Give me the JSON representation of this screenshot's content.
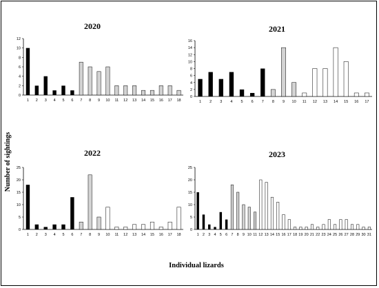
{
  "figure": {
    "ylabel": "Number of sightings",
    "xlabel": "Individual lizards"
  },
  "colors": {
    "black": "#000000",
    "gray": "#d3d3d3",
    "white": "#ffffff"
  },
  "chart_data": [
    {
      "type": "bar",
      "title": "2020",
      "categories": [
        "1",
        "2",
        "3",
        "4",
        "5",
        "6",
        "7",
        "8",
        "9",
        "10",
        "11",
        "12",
        "13",
        "14",
        "15",
        "16",
        "17",
        "18"
      ],
      "values": [
        10,
        2,
        4,
        1,
        2,
        1,
        7,
        6,
        5,
        6,
        2,
        2,
        2,
        1,
        1,
        2,
        2,
        1
      ],
      "fills": [
        "black",
        "black",
        "black",
        "black",
        "black",
        "black",
        "gray",
        "gray",
        "gray",
        "gray",
        "gray",
        "gray",
        "gray",
        "gray",
        "gray",
        "gray",
        "gray",
        "gray"
      ],
      "yticks": [
        0,
        2,
        4,
        6,
        8,
        10,
        12
      ],
      "ylim": [
        0,
        12
      ]
    },
    {
      "type": "bar",
      "title": "2021",
      "categories": [
        "1",
        "2",
        "3",
        "4",
        "5",
        "6",
        "7",
        "8",
        "9",
        "10",
        "11",
        "12",
        "13",
        "14",
        "15",
        "16",
        "17"
      ],
      "values": [
        5,
        7,
        5,
        7,
        2,
        1,
        8,
        2,
        14,
        4,
        1,
        8,
        8,
        14,
        10,
        1,
        1
      ],
      "fills": [
        "black",
        "black",
        "black",
        "black",
        "black",
        "black",
        "black",
        "gray",
        "gray",
        "gray",
        "white",
        "white",
        "white",
        "white",
        "white",
        "white",
        "white"
      ],
      "yticks": [
        0,
        2,
        4,
        6,
        8,
        10,
        12,
        14,
        16
      ],
      "ylim": [
        0,
        16
      ]
    },
    {
      "type": "bar",
      "title": "2022",
      "categories": [
        "1",
        "2",
        "3",
        "4",
        "5",
        "6",
        "7",
        "8",
        "9",
        "10",
        "11",
        "12",
        "13",
        "14",
        "15",
        "16",
        "17",
        "18"
      ],
      "values": [
        18,
        2,
        1,
        2,
        2,
        13,
        3,
        22,
        5,
        9,
        1,
        1,
        2,
        2,
        3,
        1,
        3,
        9
      ],
      "fills": [
        "black",
        "black",
        "black",
        "black",
        "black",
        "black",
        "gray",
        "gray",
        "gray",
        "white",
        "white",
        "white",
        "white",
        "white",
        "white",
        "white",
        "white",
        "white"
      ],
      "yticks": [
        0,
        5,
        10,
        15,
        20,
        25
      ],
      "ylim": [
        0,
        25
      ]
    },
    {
      "type": "bar",
      "title": "2023",
      "categories": [
        "1",
        "2",
        "3",
        "4",
        "5",
        "6",
        "7",
        "8",
        "9",
        "10",
        "11",
        "12",
        "13",
        "14",
        "15",
        "16",
        "17",
        "18",
        "19",
        "20",
        "21",
        "22",
        "23",
        "24",
        "25",
        "26",
        "27",
        "28",
        "29",
        "30",
        "31"
      ],
      "values": [
        15,
        6,
        2,
        1,
        7,
        4,
        18,
        15,
        10,
        9,
        7,
        20,
        19,
        13,
        11,
        6,
        4,
        1,
        1,
        1,
        2,
        1,
        2,
        4,
        2,
        4,
        4,
        2,
        2,
        1,
        1
      ],
      "fills": [
        "black",
        "black",
        "black",
        "black",
        "black",
        "black",
        "gray",
        "gray",
        "gray",
        "gray",
        "gray",
        "white",
        "white",
        "white",
        "white",
        "white",
        "white",
        "white",
        "white",
        "white",
        "white",
        "white",
        "white",
        "white",
        "white",
        "white",
        "white",
        "white",
        "white",
        "white",
        "white"
      ],
      "yticks": [
        0,
        5,
        10,
        15,
        20,
        25
      ],
      "ylim": [
        0,
        25
      ]
    }
  ]
}
